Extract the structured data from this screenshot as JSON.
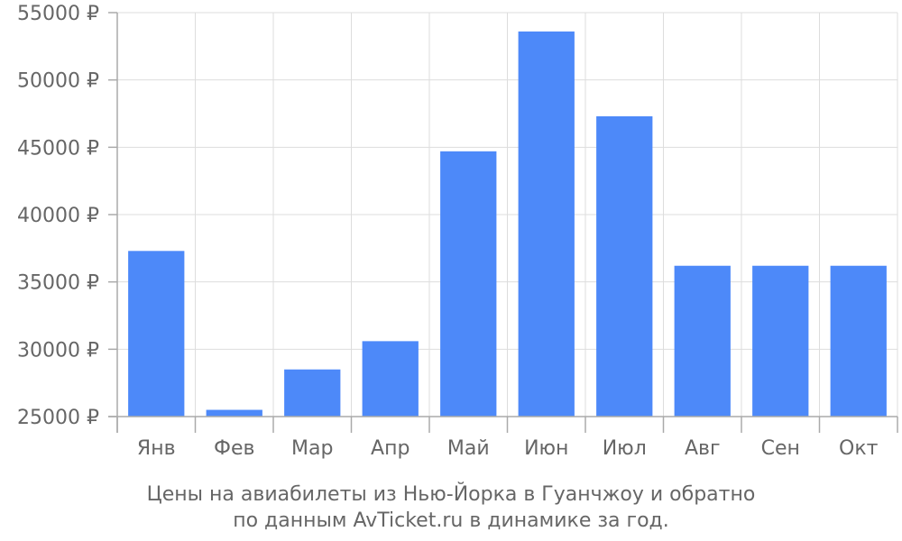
{
  "chart_data": {
    "type": "bar",
    "caption": [
      "Цены на авиабилеты из Нью-Йорка в Гуанчжоу и обратно",
      "по данным AvTicket.ru в динамике за год."
    ],
    "categories": [
      "Янв",
      "Фев",
      "Мар",
      "Апр",
      "Май",
      "Июн",
      "Июл",
      "Авг",
      "Сен",
      "Окт"
    ],
    "values": [
      37300,
      25500,
      28500,
      30600,
      44700,
      53600,
      47300,
      36200,
      36200,
      36200
    ],
    "y_ticks": [
      "25000 ₽",
      "30000 ₽",
      "35000 ₽",
      "40000 ₽",
      "45000 ₽",
      "50000 ₽",
      "55000 ₽"
    ],
    "y_tick_values": [
      25000,
      30000,
      35000,
      40000,
      45000,
      50000,
      55000
    ],
    "ylim": [
      25000,
      55000
    ],
    "grid": true,
    "bar_color": "#4d89f9"
  }
}
